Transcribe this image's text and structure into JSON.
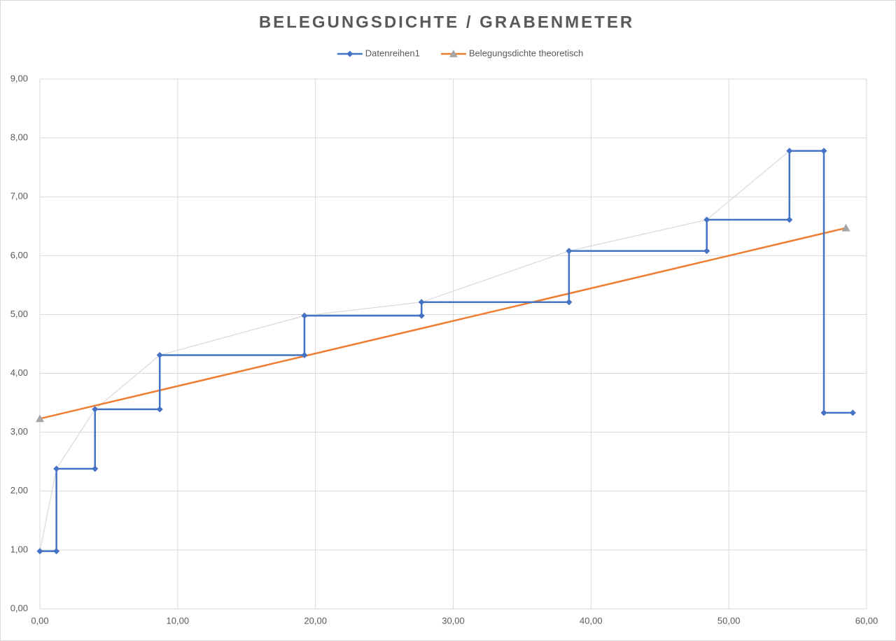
{
  "chart_data": {
    "type": "line",
    "title": "BELEGUNGSDICHTE / GRABENMETER",
    "legend": "top",
    "grid": true,
    "xlim": [
      0,
      60
    ],
    "ylim": [
      0,
      9
    ],
    "xticks": [
      {
        "value": 0,
        "label": "0,00"
      },
      {
        "value": 10,
        "label": "10,00"
      },
      {
        "value": 20,
        "label": "20,00"
      },
      {
        "value": 30,
        "label": "30,00"
      },
      {
        "value": 40,
        "label": "40,00"
      },
      {
        "value": 50,
        "label": "50,00"
      },
      {
        "value": 60,
        "label": "60,00"
      }
    ],
    "yticks": [
      {
        "value": 0,
        "label": "0,00"
      },
      {
        "value": 1,
        "label": "1,00"
      },
      {
        "value": 2,
        "label": "2,00"
      },
      {
        "value": 3,
        "label": "3,00"
      },
      {
        "value": 4,
        "label": "4,00"
      },
      {
        "value": 5,
        "label": "5,00"
      },
      {
        "value": 6,
        "label": "6,00"
      },
      {
        "value": 7,
        "label": "7,00"
      },
      {
        "value": 8,
        "label": "8,00"
      },
      {
        "value": 9,
        "label": "9,00"
      }
    ],
    "series": [
      {
        "name": "Datenreihen1",
        "color": "#4472c4",
        "marker": "diamond",
        "marker_color": "#4472c4",
        "x": [
          0,
          1.2,
          1.2,
          4.0,
          4.0,
          8.7,
          8.7,
          19.2,
          19.2,
          27.7,
          27.7,
          38.4,
          38.4,
          48.4,
          48.4,
          54.4,
          54.4,
          56.9,
          56.9,
          59.0
        ],
        "values": [
          0.98,
          0.98,
          2.38,
          2.38,
          3.39,
          3.39,
          4.31,
          4.31,
          4.98,
          4.98,
          5.21,
          5.21,
          6.08,
          6.08,
          6.61,
          6.61,
          7.78,
          7.78,
          3.33,
          3.33
        ]
      },
      {
        "name": "Belegungsdichte theoretisch",
        "color": "#ed7d31",
        "marker": "triangle",
        "marker_color": "#a5a5a5",
        "x": [
          0,
          58.5
        ],
        "values": [
          3.23,
          6.47
        ]
      },
      {
        "color": "#d9d9d9",
        "x": [
          0,
          1.2,
          4.0,
          8.7,
          19.2,
          27.7,
          38.4,
          48.4,
          54.4
        ],
        "values": [
          0.98,
          2.38,
          3.39,
          4.31,
          4.98,
          5.21,
          6.08,
          6.61,
          7.78
        ]
      }
    ]
  }
}
